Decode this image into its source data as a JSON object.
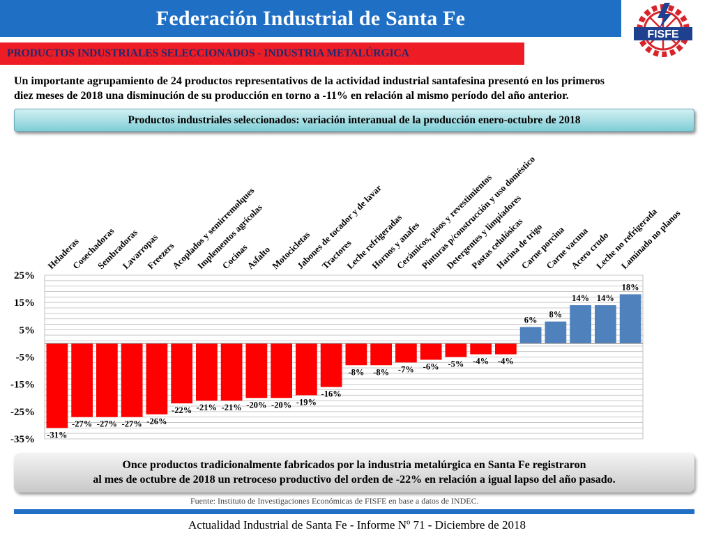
{
  "header": {
    "title": "Federación Industrial de Santa Fe",
    "logo_text": "FISFE",
    "brand_color": "#1f6fc4"
  },
  "section": {
    "title": "PRODUCTOS INDUSTRIALES SELECCIONADOS - INDUSTRIA METALÚRGICA",
    "bar_color": "#ee1c25"
  },
  "intro": {
    "line1": "Un importante agrupamiento de 24 productos representativos de la actividad industrial santafesina presentó en los primeros",
    "line2": "diez meses de 2018 una disminución de su producción en torno a -11% en relación al mismo período del año anterior."
  },
  "chart_title": "Productos industriales seleccionados: variación interanual de la producción enero-octubre de 2018",
  "chart_data": {
    "type": "bar",
    "categories": [
      "Heladeras",
      "Cosechadoras",
      "Sembradoras",
      "Lavarropas",
      "Freezers",
      "Acoplados y semirremolques",
      "Implementos agrícolas",
      "Cocinas",
      "Asfalto",
      "Motocicletas",
      "Jabones de tocador y de lavar",
      "Tractores",
      "Leche refrigeradas",
      "Hornos y anafes",
      "Cerámicos, pisos y revestimientos",
      "Pinturas p/construcción y uso doméstico",
      "Detergentes y limpiadores",
      "Pastas celulósicas",
      "Harina de trigo",
      "Carne porcina",
      "Carne vacuna",
      "Acero crudo",
      "Leche no refrigerada",
      "Laminado no planos"
    ],
    "values": [
      -31,
      -27,
      -27,
      -27,
      -26,
      -22,
      -21,
      -21,
      -20,
      -20,
      -19,
      -16,
      -8,
      -8,
      -7,
      -6,
      -5,
      -4,
      -4,
      6,
      8,
      14,
      14,
      18
    ],
    "value_labels": [
      "-31%",
      "-27%",
      "-27%",
      "-27%",
      "-26%",
      "-22%",
      "-21%",
      "-21%",
      "-20%",
      "-20%",
      "-19%",
      "-16%",
      "-8%",
      "-8%",
      "-7%",
      "-6%",
      "-5%",
      "-4%",
      "-4%",
      "6%",
      "8%",
      "14%",
      "14%",
      "18%"
    ],
    "y_ticks": [
      25,
      15,
      5,
      -5,
      -15,
      -25,
      -35
    ],
    "y_tick_labels": [
      "25%",
      "15%",
      "5%",
      "-5%",
      "-15%",
      "-25%",
      "-35%"
    ],
    "ylim": [
      -35,
      25
    ],
    "grid": true,
    "negative_color": "#ff0000",
    "positive_color": "#4f81bd",
    "label_rotation_deg": -45
  },
  "conclusion": {
    "line1": "Once productos tradicionalmente fabricados por la industria metalúrgica en Santa Fe registraron",
    "line2": "al mes de octubre de 2018 un retroceso productivo del orden de -22% en relación a igual lapso del año pasado."
  },
  "source": "Fuente: Instituto de Investigaciones Económicas de FISFE en base a datos de INDEC.",
  "footer": "Actualidad Industrial de Santa Fe - Informe Nº 71 - Diciembre de 2018"
}
